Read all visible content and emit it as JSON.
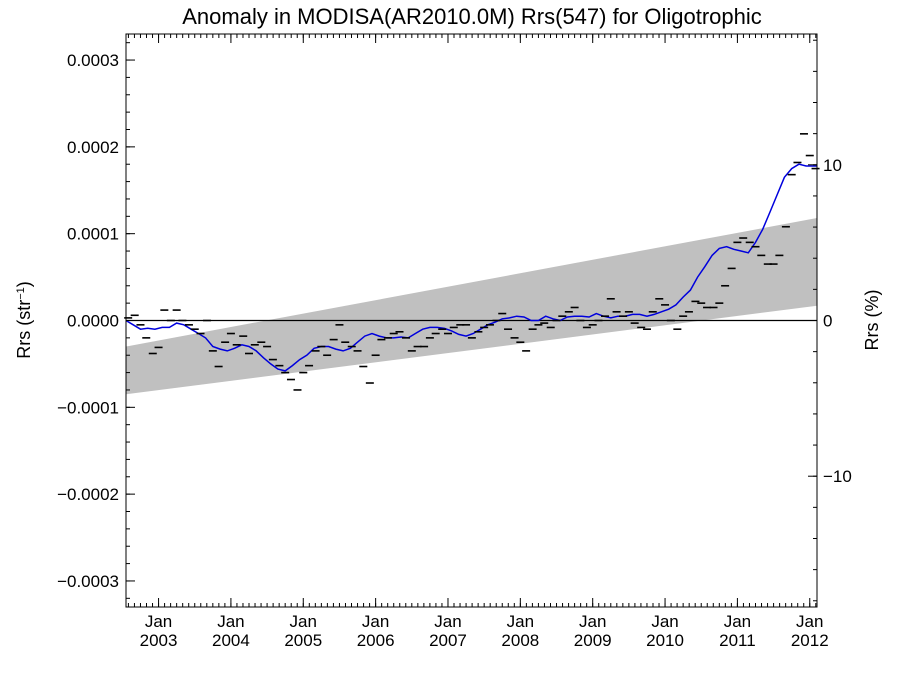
{
  "chart_data": {
    "type": "line",
    "title": "Anomaly in MODISA(AR2010.0M) Rrs(547) for Oligotrophic",
    "ylabel_left_main": "Rrs (str",
    "ylabel_left_sup": "−1",
    "ylabel_left_close": ")",
    "ylabel_right": "Rrs (%)",
    "x_range": [
      2002.55,
      2012.1
    ],
    "y_range": [
      -0.00033,
      0.00033
    ],
    "y_right_range": [
      -18.4,
      18.4
    ],
    "y_ticks": [
      0.0003,
      0.0002,
      0.0001,
      0.0,
      -0.0001,
      -0.0002,
      -0.0003
    ],
    "y_tick_labels": [
      "0.0003",
      "0.0002",
      "0.0001",
      "0.0000",
      "−0.0001",
      "−0.0002",
      "−0.0003"
    ],
    "y_right_ticks": [
      10,
      0,
      -10
    ],
    "y_right_tick_labels": [
      "10",
      "0",
      "−10"
    ],
    "x_ticks": [
      2003.0,
      2004.0,
      2005.0,
      2006.0,
      2007.0,
      2008.0,
      2009.0,
      2010.0,
      2011.0,
      2012.0
    ],
    "x_tick_labels": [
      {
        "month": "Jan",
        "year": "2003"
      },
      {
        "month": "Jan",
        "year": "2004"
      },
      {
        "month": "Jan",
        "year": "2005"
      },
      {
        "month": "Jan",
        "year": "2006"
      },
      {
        "month": "Jan",
        "year": "2007"
      },
      {
        "month": "Jan",
        "year": "2008"
      },
      {
        "month": "Jan",
        "year": "2009"
      },
      {
        "month": "Jan",
        "year": "2010"
      },
      {
        "month": "Jan",
        "year": "2011"
      },
      {
        "month": "Jan",
        "year": "2012"
      }
    ],
    "zero_line": 0.0,
    "band": {
      "color": "#c0c0c0",
      "start": {
        "x": 2002.55,
        "y_low": -8.5e-05,
        "y_high": -3e-05
      },
      "end": {
        "x": 2012.1,
        "y_low": 1.7e-05,
        "y_high": 0.000118
      }
    },
    "monthly_anomalies": {
      "color": "#000000",
      "x": [
        2002.58,
        2002.67,
        2002.75,
        2002.83,
        2002.92,
        2003.0,
        2003.08,
        2003.17,
        2003.25,
        2003.33,
        2003.42,
        2003.5,
        2003.58,
        2003.67,
        2003.75,
        2003.83,
        2003.92,
        2004.0,
        2004.08,
        2004.17,
        2004.25,
        2004.33,
        2004.42,
        2004.5,
        2004.58,
        2004.67,
        2004.75,
        2004.83,
        2004.92,
        2005.0,
        2005.08,
        2005.17,
        2005.25,
        2005.33,
        2005.42,
        2005.5,
        2005.58,
        2005.67,
        2005.75,
        2005.83,
        2005.92,
        2006.0,
        2006.08,
        2006.17,
        2006.25,
        2006.33,
        2006.42,
        2006.5,
        2006.58,
        2006.67,
        2006.75,
        2006.83,
        2006.92,
        2007.0,
        2007.08,
        2007.17,
        2007.25,
        2007.33,
        2007.42,
        2007.5,
        2007.58,
        2007.67,
        2007.75,
        2007.83,
        2007.92,
        2008.0,
        2008.08,
        2008.17,
        2008.25,
        2008.33,
        2008.42,
        2008.5,
        2008.58,
        2008.67,
        2008.75,
        2008.83,
        2008.92,
        2009.0,
        2009.08,
        2009.17,
        2009.25,
        2009.33,
        2009.42,
        2009.5,
        2009.58,
        2009.67,
        2009.75,
        2009.83,
        2009.92,
        2010.0,
        2010.08,
        2010.17,
        2010.25,
        2010.33,
        2010.42,
        2010.5,
        2010.58,
        2010.67,
        2010.75,
        2010.83,
        2010.92,
        2011.0,
        2011.08,
        2011.17,
        2011.25,
        2011.33,
        2011.42,
        2011.5,
        2011.58,
        2011.67,
        2011.75,
        2011.83,
        2011.92,
        2012.0,
        2012.08
      ],
      "y": [
        3e-06,
        6e-06,
        -5e-06,
        -2e-05,
        -3.8e-05,
        -3.1e-05,
        1.2e-05,
        0.0,
        1.2e-05,
        0.0,
        -5e-06,
        -1e-05,
        -1.5e-05,
        0.0,
        -3.5e-05,
        -5.3e-05,
        -2.5e-05,
        -1.5e-05,
        -2.8e-05,
        -1.8e-05,
        -3.8e-05,
        -2.8e-05,
        -2.5e-05,
        -3e-05,
        -4.5e-05,
        -5.2e-05,
        -6e-05,
        -6.8e-05,
        -8e-05,
        -6e-05,
        -5.2e-05,
        -3.5e-05,
        -3e-05,
        -4e-05,
        -2.2e-05,
        -5e-06,
        -2.5e-05,
        -3e-05,
        -3.5e-05,
        -5.3e-05,
        -7.2e-05,
        -4e-05,
        -2.2e-05,
        -2e-05,
        -1.5e-05,
        -1.3e-05,
        -2e-05,
        -3.5e-05,
        -3e-05,
        -3e-05,
        -2e-05,
        -1.5e-05,
        -1e-05,
        -1.5e-05,
        -8e-06,
        -5e-06,
        -5e-06,
        -2e-05,
        -1.3e-05,
        -8e-06,
        -5e-06,
        0.0,
        8e-06,
        -1e-05,
        -2e-05,
        -2.5e-05,
        -3.5e-05,
        -1e-05,
        -5e-06,
        -3e-06,
        -8e-06,
        0.0,
        5e-06,
        1e-05,
        1.5e-05,
        0.0,
        -8e-06,
        -5e-06,
        0.0,
        5e-06,
        2.5e-05,
        1e-05,
        5e-06,
        1e-05,
        -3e-06,
        -8e-06,
        -1e-05,
        1e-05,
        2.5e-05,
        1.8e-05,
        0.0,
        -1e-05,
        5e-06,
        1e-05,
        2.2e-05,
        2e-05,
        1.5e-05,
        1.5e-05,
        2e-05,
        4e-05,
        6e-05,
        9e-05,
        9.5e-05,
        9e-05,
        8.5e-05,
        7.5e-05,
        6.5e-05,
        6.5e-05,
        7.5e-05,
        0.000108,
        0.000168,
        0.000182,
        0.000215,
        0.00019,
        0.000175
      ]
    },
    "smoothed_series": {
      "color": "#0000dd",
      "x": [
        2002.55,
        2002.65,
        2002.75,
        2002.85,
        2002.95,
        2003.05,
        2003.15,
        2003.25,
        2003.35,
        2003.45,
        2003.55,
        2003.65,
        2003.75,
        2003.85,
        2003.95,
        2004.05,
        2004.15,
        2004.25,
        2004.35,
        2004.45,
        2004.55,
        2004.65,
        2004.75,
        2004.85,
        2004.95,
        2005.05,
        2005.15,
        2005.25,
        2005.35,
        2005.45,
        2005.55,
        2005.65,
        2005.75,
        2005.85,
        2005.95,
        2006.05,
        2006.15,
        2006.25,
        2006.35,
        2006.45,
        2006.55,
        2006.65,
        2006.75,
        2006.85,
        2006.95,
        2007.05,
        2007.15,
        2007.25,
        2007.35,
        2007.45,
        2007.55,
        2007.65,
        2007.75,
        2007.85,
        2007.95,
        2008.05,
        2008.15,
        2008.25,
        2008.35,
        2008.45,
        2008.55,
        2008.65,
        2008.75,
        2008.85,
        2008.95,
        2009.05,
        2009.15,
        2009.25,
        2009.35,
        2009.45,
        2009.55,
        2009.65,
        2009.75,
        2009.85,
        2009.95,
        2010.05,
        2010.15,
        2010.25,
        2010.35,
        2010.45,
        2010.55,
        2010.65,
        2010.75,
        2010.85,
        2010.95,
        2011.05,
        2011.15,
        2011.25,
        2011.35,
        2011.45,
        2011.55,
        2011.65,
        2011.75,
        2011.85,
        2011.95,
        2012.05,
        2012.1
      ],
      "y": [
        0.0,
        -5e-06,
        -1e-05,
        -9e-06,
        -1e-05,
        -8e-06,
        -8e-06,
        -3e-06,
        -5e-06,
        -1e-05,
        -1.5e-05,
        -2e-05,
        -3e-05,
        -3.3e-05,
        -3.5e-05,
        -3.2e-05,
        -2.8e-05,
        -3e-05,
        -3.5e-05,
        -4.3e-05,
        -5e-05,
        -5.6e-05,
        -5.8e-05,
        -5.2e-05,
        -4.5e-05,
        -4e-05,
        -3.2e-05,
        -3e-05,
        -3e-05,
        -3.3e-05,
        -3.5e-05,
        -3.2e-05,
        -2.5e-05,
        -1.8e-05,
        -1.5e-05,
        -1.8e-05,
        -2e-05,
        -2e-05,
        -1.9e-05,
        -2e-05,
        -1.5e-05,
        -1e-05,
        -8e-06,
        -8e-06,
        -9e-06,
        -1.2e-05,
        -1.6e-05,
        -1.8e-05,
        -1.5e-05,
        -1e-05,
        -5e-06,
        -2e-06,
        2e-06,
        3e-06,
        5e-06,
        4e-06,
        0.0,
        0.0,
        5e-06,
        2e-06,
        0.0,
        4e-06,
        5e-06,
        5e-06,
        4e-06,
        8e-06,
        5e-06,
        3e-06,
        5e-06,
        5e-06,
        7e-06,
        7e-06,
        5e-06,
        7e-06,
        1e-05,
        1.3e-05,
        1.8e-05,
        2.7e-05,
        3.5e-05,
        5e-05,
        6.2e-05,
        7.5e-05,
        8.3e-05,
        8.5e-05,
        8.2e-05,
        8e-05,
        7.8e-05,
        9e-05,
        0.000105,
        0.000125,
        0.000145,
        0.000165,
        0.000175,
        0.00018,
        0.000178,
        0.000178,
        0.000178
      ]
    }
  }
}
